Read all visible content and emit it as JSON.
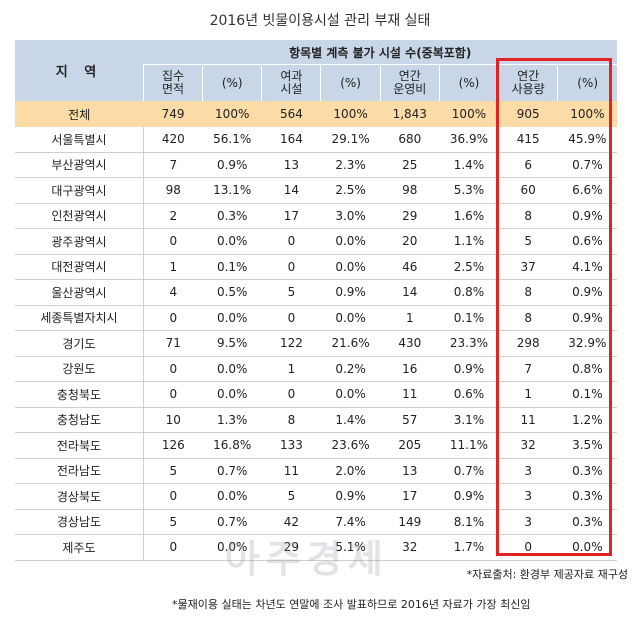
{
  "title": "2016년 빗물이용시설 관리 부재 실태",
  "header": {
    "region": "지 역",
    "group": "항목별 계측 불가 시설 수(중복포함)",
    "cols": [
      "집수\n면적",
      "(%)",
      "여과\n시설",
      "(%)",
      "연간\n운영비",
      "(%)",
      "연간\n사용량",
      "(%)"
    ]
  },
  "total": [
    "전체",
    "749",
    "100%",
    "564",
    "100%",
    "1,843",
    "100%",
    "905",
    "100%"
  ],
  "rows": [
    [
      "서울특별시",
      "420",
      "56.1%",
      "164",
      "29.1%",
      "680",
      "36.9%",
      "415",
      "45.9%"
    ],
    [
      "부산광역시",
      "7",
      "0.9%",
      "13",
      "2.3%",
      "25",
      "1.4%",
      "6",
      "0.7%"
    ],
    [
      "대구광역시",
      "98",
      "13.1%",
      "14",
      "2.5%",
      "98",
      "5.3%",
      "60",
      "6.6%"
    ],
    [
      "인천광역시",
      "2",
      "0.3%",
      "17",
      "3.0%",
      "29",
      "1.6%",
      "8",
      "0.9%"
    ],
    [
      "광주광역시",
      "0",
      "0.0%",
      "0",
      "0.0%",
      "20",
      "1.1%",
      "5",
      "0.6%"
    ],
    [
      "대전광역시",
      "1",
      "0.1%",
      "0",
      "0.0%",
      "46",
      "2.5%",
      "37",
      "4.1%"
    ],
    [
      "울산광역시",
      "4",
      "0.5%",
      "5",
      "0.9%",
      "14",
      "0.8%",
      "8",
      "0.9%"
    ],
    [
      "세종특별자치시",
      "0",
      "0.0%",
      "0",
      "0.0%",
      "1",
      "0.1%",
      "8",
      "0.9%"
    ],
    [
      "경기도",
      "71",
      "9.5%",
      "122",
      "21.6%",
      "430",
      "23.3%",
      "298",
      "32.9%"
    ],
    [
      "강원도",
      "0",
      "0.0%",
      "1",
      "0.2%",
      "16",
      "0.9%",
      "7",
      "0.8%"
    ],
    [
      "충청북도",
      "0",
      "0.0%",
      "0",
      "0.0%",
      "11",
      "0.6%",
      "1",
      "0.1%"
    ],
    [
      "충청남도",
      "10",
      "1.3%",
      "8",
      "1.4%",
      "57",
      "3.1%",
      "11",
      "1.2%"
    ],
    [
      "전라북도",
      "126",
      "16.8%",
      "133",
      "23.6%",
      "205",
      "11.1%",
      "32",
      "3.5%"
    ],
    [
      "전라남도",
      "5",
      "0.7%",
      "11",
      "2.0%",
      "13",
      "0.7%",
      "3",
      "0.3%"
    ],
    [
      "경상북도",
      "0",
      "0.0%",
      "5",
      "0.9%",
      "17",
      "0.9%",
      "3",
      "0.3%"
    ],
    [
      "경상남도",
      "5",
      "0.7%",
      "42",
      "7.4%",
      "149",
      "8.1%",
      "3",
      "0.3%"
    ],
    [
      "제주도",
      "0",
      "0.0%",
      "29",
      "5.1%",
      "32",
      "1.7%",
      "0",
      "0.0%"
    ]
  ],
  "notes": {
    "source": "*자료출처: 환경부 제공자료 재구성",
    "survey": "*물재이용 실태는 차년도 연말에 조사 발표하므로 2016년 자료가 가장 최신임"
  },
  "watermark": "아주경제",
  "highlight_color": "#e02323"
}
